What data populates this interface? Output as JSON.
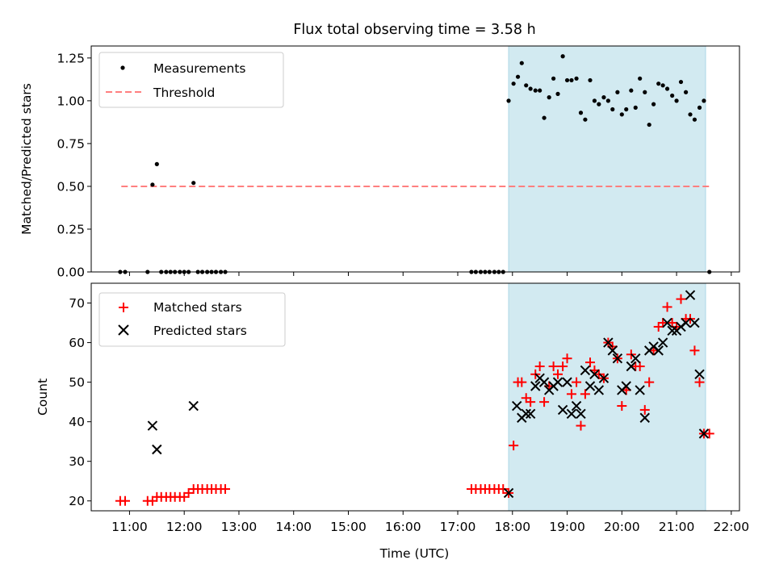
{
  "title": "Flux total observing time = 3.58 h",
  "colors": {
    "shade": "#add8e6",
    "threshold": "#ff7f7f",
    "matched": "#ff0000",
    "predicted": "#000000",
    "measure": "#000000"
  },
  "chart_data": [
    {
      "type": "scatter",
      "ylabel": "Matched/Predicted stars",
      "xlim": [
        10.3,
        22.15
      ],
      "ylim": [
        0,
        1.32
      ],
      "yticks": [
        0,
        0.25,
        0.5,
        0.75,
        1.0,
        1.25
      ],
      "ytick_labels": [
        "0.00",
        "0.25",
        "0.50",
        "0.75",
        "1.00",
        "1.25"
      ],
      "shaded_span": [
        17.93,
        21.53
      ],
      "threshold": {
        "y": 0.5,
        "x_range": [
          10.85,
          21.6
        ]
      },
      "legend": {
        "position": "top-left",
        "entries": [
          {
            "label": "Measurements",
            "marker": "dot"
          },
          {
            "label": "Threshold",
            "marker": "dash"
          }
        ]
      },
      "series": [
        {
          "name": "Measurements",
          "x": [
            10.83,
            10.92,
            11.33,
            11.42,
            11.5,
            11.58,
            11.67,
            11.75,
            11.83,
            11.92,
            12.0,
            12.08,
            12.17,
            12.25,
            12.33,
            12.42,
            12.5,
            12.58,
            12.67,
            12.75,
            17.25,
            17.33,
            17.42,
            17.5,
            17.58,
            17.67,
            17.75,
            17.83,
            17.93,
            18.02,
            18.1,
            18.17,
            18.25,
            18.33,
            18.42,
            18.5,
            18.58,
            18.67,
            18.75,
            18.83,
            18.92,
            19.0,
            19.08,
            19.17,
            19.25,
            19.33,
            19.42,
            19.5,
            19.58,
            19.67,
            19.75,
            19.83,
            19.92,
            20.0,
            20.08,
            20.17,
            20.25,
            20.33,
            20.42,
            20.5,
            20.58,
            20.67,
            20.75,
            20.83,
            20.92,
            21.0,
            21.08,
            21.17,
            21.25,
            21.33,
            21.42,
            21.5,
            21.6
          ],
          "y": [
            0,
            0,
            0,
            0.51,
            0.63,
            0,
            0,
            0,
            0,
            0,
            0,
            0,
            0.52,
            0,
            0,
            0,
            0,
            0,
            0,
            0,
            0,
            0,
            0,
            0,
            0,
            0,
            0,
            0,
            1.0,
            1.1,
            1.14,
            1.22,
            1.09,
            1.07,
            1.06,
            1.06,
            0.9,
            1.02,
            1.13,
            1.04,
            1.26,
            1.12,
            1.12,
            1.13,
            0.93,
            0.89,
            1.12,
            1.0,
            0.98,
            1.02,
            1.0,
            0.95,
            1.05,
            0.92,
            0.95,
            1.06,
            0.96,
            1.13,
            1.05,
            0.86,
            0.98,
            1.1,
            1.09,
            1.07,
            1.03,
            1.0,
            1.11,
            1.05,
            0.92,
            0.89,
            0.96,
            1.0,
            0
          ]
        }
      ]
    },
    {
      "type": "scatter",
      "xlabel": "Time (UTC)",
      "ylabel": "Count",
      "xlim": [
        10.3,
        22.15
      ],
      "ylim": [
        17.5,
        75
      ],
      "yticks": [
        20,
        30,
        40,
        50,
        60,
        70
      ],
      "ytick_labels": [
        "20",
        "30",
        "40",
        "50",
        "60",
        "70"
      ],
      "xticks": [
        11,
        12,
        13,
        14,
        15,
        16,
        17,
        18,
        19,
        20,
        21,
        22
      ],
      "xtick_labels": [
        "11:00",
        "12:00",
        "13:00",
        "14:00",
        "15:00",
        "16:00",
        "17:00",
        "18:00",
        "19:00",
        "20:00",
        "21:00",
        "22:00"
      ],
      "shaded_span": [
        17.93,
        21.53
      ],
      "legend": {
        "position": "top-left",
        "entries": [
          {
            "label": "Matched stars",
            "marker": "plus"
          },
          {
            "label": "Predicted stars",
            "marker": "x"
          }
        ]
      },
      "series": [
        {
          "name": "Matched stars",
          "x": [
            10.83,
            10.92,
            11.33,
            11.42,
            11.5,
            11.58,
            11.67,
            11.75,
            11.83,
            11.92,
            12.0,
            12.08,
            12.17,
            12.25,
            12.33,
            12.42,
            12.5,
            12.58,
            12.67,
            12.75,
            17.25,
            17.33,
            17.42,
            17.5,
            17.58,
            17.67,
            17.75,
            17.83,
            17.93,
            18.02,
            18.1,
            18.17,
            18.25,
            18.33,
            18.42,
            18.5,
            18.58,
            18.67,
            18.75,
            18.83,
            18.92,
            19.0,
            19.08,
            19.17,
            19.25,
            19.33,
            19.42,
            19.5,
            19.58,
            19.67,
            19.75,
            19.83,
            19.92,
            20.0,
            20.08,
            20.17,
            20.25,
            20.33,
            20.42,
            20.5,
            20.58,
            20.67,
            20.75,
            20.83,
            20.92,
            21.0,
            21.08,
            21.17,
            21.25,
            21.33,
            21.42,
            21.5,
            21.6
          ],
          "y": [
            20,
            20,
            20,
            20,
            21,
            21,
            21,
            21,
            21,
            21,
            21,
            22,
            23,
            23,
            23,
            23,
            23,
            23,
            23,
            23,
            23,
            23,
            23,
            23,
            23,
            23,
            23,
            23,
            22,
            34,
            50,
            50,
            46,
            45,
            52,
            54,
            45,
            49,
            54,
            52,
            54,
            56,
            47,
            50,
            39,
            47,
            55,
            53,
            52,
            51,
            60,
            59,
            56,
            44,
            48,
            57,
            54,
            54,
            43,
            50,
            58,
            64,
            65,
            69,
            65,
            64,
            71,
            66,
            66,
            58,
            50,
            37,
            37
          ]
        },
        {
          "name": "Predicted stars",
          "x": [
            11.42,
            11.5,
            12.17,
            17.93,
            18.08,
            18.17,
            18.25,
            18.33,
            18.42,
            18.5,
            18.58,
            18.67,
            18.75,
            18.83,
            18.92,
            19.0,
            19.08,
            19.17,
            19.25,
            19.33,
            19.42,
            19.5,
            19.58,
            19.67,
            19.75,
            19.83,
            19.92,
            20.0,
            20.08,
            20.17,
            20.25,
            20.33,
            20.42,
            20.5,
            20.58,
            20.67,
            20.75,
            20.83,
            20.92,
            21.0,
            21.08,
            21.17,
            21.25,
            21.33,
            21.42,
            21.5
          ],
          "y": [
            39,
            33,
            44,
            22,
            44,
            41,
            42,
            42,
            49,
            51,
            50,
            48,
            49,
            50,
            43,
            50,
            42,
            44,
            42,
            53,
            49,
            52,
            48,
            51,
            60,
            58,
            56,
            48,
            49,
            54,
            56,
            48,
            41,
            58,
            59,
            58,
            60,
            65,
            63,
            63,
            64,
            65,
            72,
            65,
            52,
            37
          ]
        }
      ]
    }
  ]
}
